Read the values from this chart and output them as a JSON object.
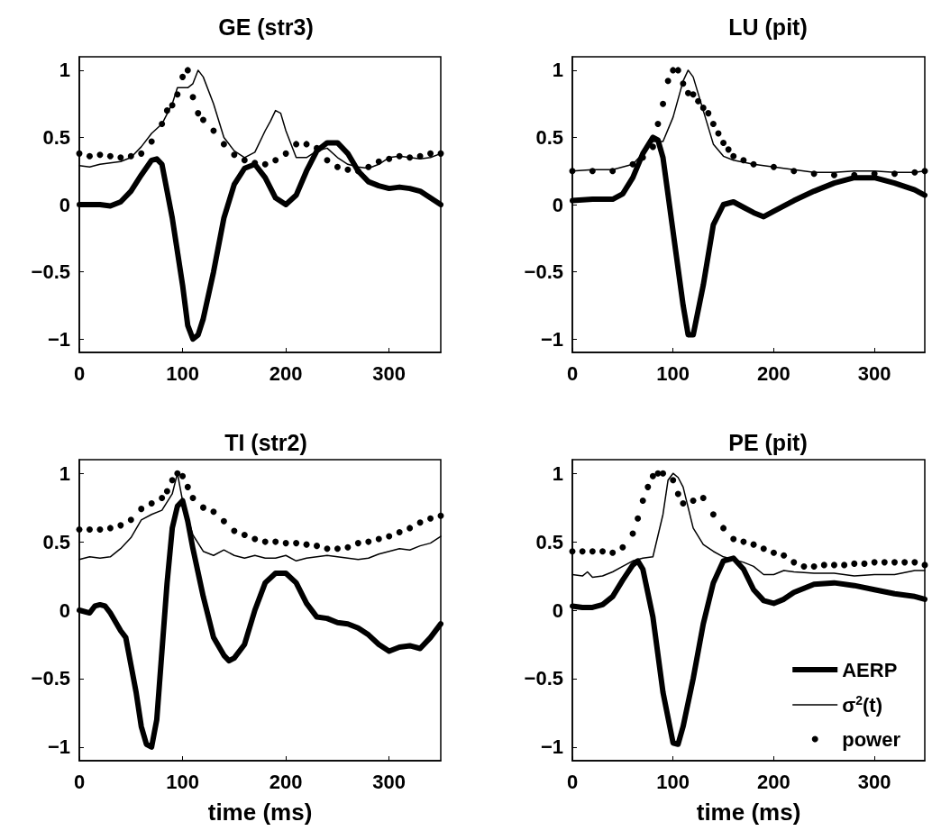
{
  "chart_data": [
    {
      "type": "line",
      "title": "GE (str3)",
      "xlim": [
        0,
        350
      ],
      "xticks": [
        0,
        100,
        200,
        300
      ],
      "ylim": [
        -1.1,
        1.1
      ],
      "yticks": [
        -1,
        -0.5,
        0,
        0.5,
        1
      ],
      "series": [
        {
          "type": "line",
          "color": "#000000",
          "marker": "none",
          "x": [
            0,
            10,
            20,
            30,
            40,
            50,
            60,
            70,
            75,
            80,
            90,
            100,
            105,
            110,
            115,
            120,
            130,
            140,
            150,
            160,
            170,
            180,
            190,
            200,
            210,
            220,
            230,
            240,
            250,
            260,
            270,
            280,
            290,
            300,
            310,
            320,
            330,
            340,
            350
          ],
          "values": [
            0.0,
            0.0,
            0.0,
            -0.01,
            0.02,
            0.1,
            0.22,
            0.33,
            0.34,
            0.3,
            -0.1,
            -0.6,
            -0.9,
            -1.0,
            -0.97,
            -0.85,
            -0.5,
            -0.1,
            0.15,
            0.27,
            0.3,
            0.2,
            0.05,
            0.0,
            0.07,
            0.25,
            0.4,
            0.46,
            0.46,
            0.38,
            0.25,
            0.17,
            0.14,
            0.12,
            0.13,
            0.12,
            0.1,
            0.05,
            0.0
          ]
        },
        {
          "type": "line",
          "color": "#000000",
          "marker": "none",
          "x": [
            0,
            10,
            20,
            30,
            40,
            50,
            60,
            70,
            80,
            90,
            95,
            100,
            105,
            110,
            115,
            120,
            130,
            140,
            150,
            160,
            170,
            180,
            185,
            190,
            195,
            200,
            210,
            220,
            230,
            240,
            250,
            260,
            270,
            280,
            290,
            300,
            310,
            320,
            330,
            340,
            350
          ],
          "values": [
            0.29,
            0.28,
            0.3,
            0.31,
            0.32,
            0.35,
            0.43,
            0.53,
            0.6,
            0.75,
            0.87,
            0.87,
            0.87,
            0.9,
            1.0,
            0.95,
            0.75,
            0.5,
            0.4,
            0.35,
            0.39,
            0.55,
            0.62,
            0.7,
            0.68,
            0.55,
            0.35,
            0.35,
            0.4,
            0.42,
            0.35,
            0.3,
            0.28,
            0.27,
            0.3,
            0.35,
            0.36,
            0.35,
            0.34,
            0.35,
            0.38
          ]
        },
        {
          "type": "scatter",
          "color": "#000000",
          "marker": "circle",
          "x": [
            0,
            10,
            20,
            30,
            40,
            50,
            60,
            70,
            80,
            85,
            90,
            95,
            100,
            105,
            110,
            115,
            120,
            130,
            140,
            150,
            160,
            170,
            180,
            190,
            200,
            210,
            220,
            230,
            240,
            250,
            260,
            270,
            280,
            290,
            300,
            310,
            320,
            330,
            340,
            350
          ],
          "values": [
            0.38,
            0.36,
            0.37,
            0.36,
            0.35,
            0.36,
            0.38,
            0.47,
            0.6,
            0.7,
            0.74,
            0.82,
            0.95,
            1.0,
            0.8,
            0.68,
            0.63,
            0.55,
            0.45,
            0.37,
            0.33,
            0.31,
            0.3,
            0.33,
            0.38,
            0.45,
            0.45,
            0.42,
            0.33,
            0.28,
            0.26,
            0.25,
            0.28,
            0.32,
            0.34,
            0.36,
            0.35,
            0.36,
            0.38,
            0.38
          ]
        }
      ]
    },
    {
      "type": "line",
      "title": "LU (pit)",
      "xlim": [
        0,
        350
      ],
      "xticks": [
        0,
        100,
        200,
        300
      ],
      "ylim": [
        -1.1,
        1.1
      ],
      "yticks": [
        -1,
        -0.5,
        0,
        0.5,
        1
      ],
      "series": [
        {
          "type": "line",
          "color": "#000000",
          "marker": "none",
          "x": [
            0,
            20,
            40,
            50,
            60,
            70,
            80,
            85,
            90,
            100,
            110,
            115,
            120,
            130,
            140,
            150,
            160,
            170,
            180,
            190,
            200,
            220,
            240,
            260,
            280,
            300,
            320,
            340,
            350
          ],
          "values": [
            0.03,
            0.04,
            0.04,
            0.08,
            0.2,
            0.38,
            0.5,
            0.48,
            0.35,
            -0.2,
            -0.75,
            -0.97,
            -0.97,
            -0.6,
            -0.15,
            0.0,
            0.02,
            -0.02,
            -0.06,
            -0.09,
            -0.05,
            0.03,
            0.1,
            0.16,
            0.2,
            0.2,
            0.16,
            0.11,
            0.07
          ]
        },
        {
          "type": "line",
          "color": "#000000",
          "marker": "none",
          "x": [
            0,
            20,
            40,
            60,
            70,
            80,
            90,
            100,
            110,
            115,
            120,
            130,
            140,
            150,
            160,
            180,
            200,
            220,
            240,
            260,
            280,
            300,
            320,
            340,
            350
          ],
          "values": [
            0.25,
            0.26,
            0.26,
            0.3,
            0.38,
            0.47,
            0.47,
            0.65,
            0.92,
            1.0,
            0.95,
            0.7,
            0.45,
            0.36,
            0.33,
            0.3,
            0.28,
            0.26,
            0.24,
            0.24,
            0.25,
            0.25,
            0.24,
            0.24,
            0.25
          ]
        },
        {
          "type": "scatter",
          "color": "#000000",
          "marker": "circle",
          "x": [
            0,
            20,
            40,
            60,
            70,
            80,
            85,
            90,
            95,
            100,
            105,
            110,
            115,
            120,
            125,
            130,
            135,
            140,
            145,
            150,
            155,
            160,
            170,
            180,
            200,
            220,
            240,
            260,
            280,
            300,
            320,
            340,
            350
          ],
          "values": [
            0.25,
            0.25,
            0.25,
            0.3,
            0.35,
            0.43,
            0.6,
            0.75,
            0.92,
            1.0,
            1.0,
            0.9,
            0.83,
            0.82,
            0.77,
            0.72,
            0.68,
            0.6,
            0.53,
            0.46,
            0.41,
            0.36,
            0.33,
            0.3,
            0.28,
            0.25,
            0.23,
            0.22,
            0.22,
            0.23,
            0.23,
            0.24,
            0.25
          ]
        }
      ]
    },
    {
      "type": "line",
      "title": "TI (str2)",
      "xlabel": "time (ms)",
      "xlim": [
        0,
        350
      ],
      "xticks": [
        0,
        100,
        200,
        300
      ],
      "ylim": [
        -1.1,
        1.1
      ],
      "yticks": [
        -1,
        -0.5,
        0,
        0.5,
        1
      ],
      "series": [
        {
          "type": "line",
          "color": "#000000",
          "marker": "none",
          "x": [
            0,
            10,
            15,
            20,
            25,
            30,
            40,
            45,
            50,
            55,
            60,
            65,
            70,
            75,
            80,
            85,
            90,
            95,
            100,
            105,
            110,
            120,
            130,
            140,
            145,
            150,
            160,
            170,
            180,
            190,
            200,
            210,
            220,
            230,
            240,
            250,
            260,
            270,
            280,
            290,
            300,
            310,
            320,
            330,
            340,
            350
          ],
          "values": [
            0.0,
            -0.02,
            0.03,
            0.04,
            0.03,
            -0.02,
            -0.15,
            -0.2,
            -0.4,
            -0.6,
            -0.85,
            -0.98,
            -1.0,
            -0.8,
            -0.3,
            0.2,
            0.6,
            0.76,
            0.8,
            0.65,
            0.45,
            0.1,
            -0.2,
            -0.33,
            -0.37,
            -0.35,
            -0.25,
            0.0,
            0.2,
            0.27,
            0.27,
            0.2,
            0.05,
            -0.05,
            -0.06,
            -0.09,
            -0.1,
            -0.13,
            -0.18,
            -0.25,
            -0.3,
            -0.27,
            -0.26,
            -0.28,
            -0.2,
            -0.1
          ]
        },
        {
          "type": "line",
          "color": "#000000",
          "marker": "none",
          "x": [
            0,
            10,
            20,
            30,
            40,
            50,
            60,
            70,
            80,
            90,
            95,
            100,
            110,
            120,
            130,
            140,
            150,
            160,
            170,
            180,
            190,
            200,
            210,
            220,
            230,
            240,
            250,
            260,
            270,
            280,
            290,
            300,
            310,
            320,
            330,
            340,
            350
          ],
          "values": [
            0.37,
            0.39,
            0.38,
            0.39,
            0.45,
            0.53,
            0.66,
            0.7,
            0.73,
            0.85,
            1.0,
            0.8,
            0.55,
            0.43,
            0.4,
            0.44,
            0.4,
            0.38,
            0.4,
            0.38,
            0.38,
            0.4,
            0.36,
            0.38,
            0.39,
            0.4,
            0.39,
            0.38,
            0.37,
            0.38,
            0.41,
            0.43,
            0.45,
            0.44,
            0.47,
            0.49,
            0.54
          ]
        },
        {
          "type": "scatter",
          "color": "#000000",
          "marker": "circle",
          "x": [
            0,
            10,
            20,
            30,
            40,
            50,
            60,
            70,
            80,
            85,
            90,
            95,
            100,
            105,
            110,
            120,
            130,
            140,
            150,
            160,
            170,
            180,
            190,
            200,
            210,
            220,
            230,
            240,
            250,
            260,
            270,
            280,
            290,
            300,
            310,
            320,
            330,
            340,
            350
          ],
          "values": [
            0.59,
            0.59,
            0.59,
            0.6,
            0.62,
            0.66,
            0.74,
            0.78,
            0.82,
            0.87,
            0.95,
            1.0,
            0.98,
            0.9,
            0.82,
            0.75,
            0.72,
            0.65,
            0.58,
            0.55,
            0.52,
            0.5,
            0.5,
            0.49,
            0.49,
            0.48,
            0.47,
            0.45,
            0.45,
            0.46,
            0.49,
            0.5,
            0.52,
            0.54,
            0.57,
            0.6,
            0.64,
            0.67,
            0.69
          ]
        }
      ]
    },
    {
      "type": "line",
      "title": "PE (pit)",
      "xlabel": "time (ms)",
      "xlim": [
        0,
        350
      ],
      "xticks": [
        0,
        100,
        200,
        300
      ],
      "ylim": [
        -1.1,
        1.1
      ],
      "yticks": [
        -1,
        -0.5,
        0,
        0.5,
        1
      ],
      "legend": "bottom right",
      "series": [
        {
          "type": "line",
          "name": "AERP",
          "color": "#000000",
          "marker": "none",
          "x": [
            0,
            10,
            20,
            30,
            40,
            50,
            60,
            65,
            70,
            80,
            90,
            100,
            105,
            110,
            120,
            130,
            140,
            150,
            160,
            170,
            180,
            190,
            200,
            210,
            220,
            240,
            260,
            280,
            300,
            320,
            340,
            350
          ],
          "values": [
            0.03,
            0.02,
            0.02,
            0.04,
            0.1,
            0.22,
            0.33,
            0.36,
            0.3,
            -0.05,
            -0.6,
            -0.97,
            -0.98,
            -0.85,
            -0.5,
            -0.1,
            0.2,
            0.36,
            0.38,
            0.3,
            0.15,
            0.07,
            0.05,
            0.08,
            0.13,
            0.19,
            0.2,
            0.18,
            0.15,
            0.12,
            0.1,
            0.08
          ]
        },
        {
          "type": "line",
          "name": "σ$^{2}$(t)",
          "color": "#000000",
          "marker": "none",
          "x": [
            0,
            10,
            15,
            20,
            30,
            40,
            50,
            60,
            70,
            80,
            90,
            95,
            100,
            105,
            110,
            120,
            130,
            140,
            150,
            160,
            170,
            180,
            190,
            200,
            210,
            220,
            240,
            260,
            280,
            300,
            320,
            340,
            350
          ],
          "values": [
            0.26,
            0.25,
            0.28,
            0.24,
            0.25,
            0.28,
            0.32,
            0.36,
            0.38,
            0.39,
            0.7,
            0.95,
            1.0,
            0.97,
            0.9,
            0.6,
            0.48,
            0.43,
            0.39,
            0.37,
            0.35,
            0.32,
            0.26,
            0.26,
            0.29,
            0.28,
            0.27,
            0.27,
            0.25,
            0.26,
            0.26,
            0.29,
            0.29
          ]
        },
        {
          "type": "scatter",
          "name": "power",
          "color": "#000000",
          "marker": "circle",
          "x": [
            0,
            10,
            20,
            30,
            40,
            50,
            60,
            65,
            70,
            75,
            80,
            85,
            90,
            100,
            105,
            110,
            120,
            130,
            140,
            150,
            160,
            170,
            180,
            190,
            200,
            210,
            220,
            230,
            240,
            250,
            260,
            270,
            280,
            290,
            300,
            310,
            320,
            330,
            340,
            350
          ],
          "values": [
            0.43,
            0.43,
            0.43,
            0.43,
            0.42,
            0.46,
            0.56,
            0.67,
            0.8,
            0.9,
            0.98,
            1.0,
            1.0,
            0.95,
            0.85,
            0.78,
            0.8,
            0.82,
            0.7,
            0.6,
            0.52,
            0.5,
            0.48,
            0.45,
            0.42,
            0.4,
            0.35,
            0.32,
            0.32,
            0.33,
            0.33,
            0.33,
            0.34,
            0.34,
            0.35,
            0.35,
            0.35,
            0.35,
            0.35,
            0.33
          ]
        }
      ]
    }
  ]
}
